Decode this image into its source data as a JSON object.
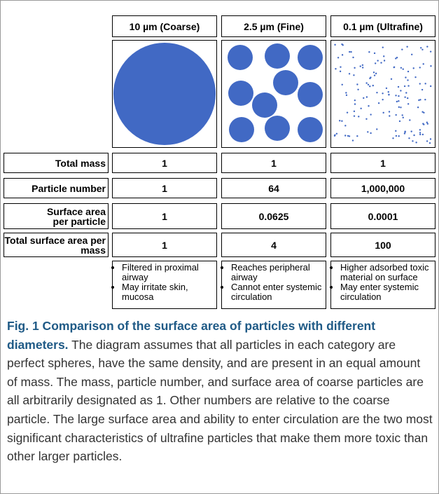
{
  "table": {
    "columns": [
      "10 µm (Coarse)",
      "2.5 µm (Fine)",
      "0.1 µm (Ultrafine)"
    ],
    "rows": [
      {
        "label": "Total mass",
        "cells": [
          "1",
          "1",
          "1"
        ]
      },
      {
        "label": "Particle number",
        "cells": [
          "1",
          "64",
          "1,000,000"
        ]
      },
      {
        "label": "Surface area per particle",
        "cells": [
          "1",
          "0.0625",
          "0.0001"
        ]
      },
      {
        "label": "Total surface area per mass",
        "cells": [
          "1",
          "4",
          "100"
        ]
      }
    ],
    "notes": [
      [
        "Filtered in proximal airway",
        "May irritate skin, mucosa"
      ],
      [
        "Reaches peripheral airway",
        "Cannot enter systemic circulation"
      ],
      [
        "Higher adsorbed toxic material on surface",
        "May enter systemic circulation"
      ]
    ]
  },
  "caption": {
    "title": "Fig. 1 Comparison of the surface area of particles with different diameters.",
    "text": "The diagram assumes that all particles in each category are perfect spheres, have the same density, and are present in an equal amount of mass. The mass, particle number, and surface area of coarse particles are all arbitrarily designated as 1. Other numbers are relative to the coarse particle. The large surface area and ability to enter circulation are the two most significant characteristics of ultrafine particles that make them more toxic than other larger particles."
  }
}
